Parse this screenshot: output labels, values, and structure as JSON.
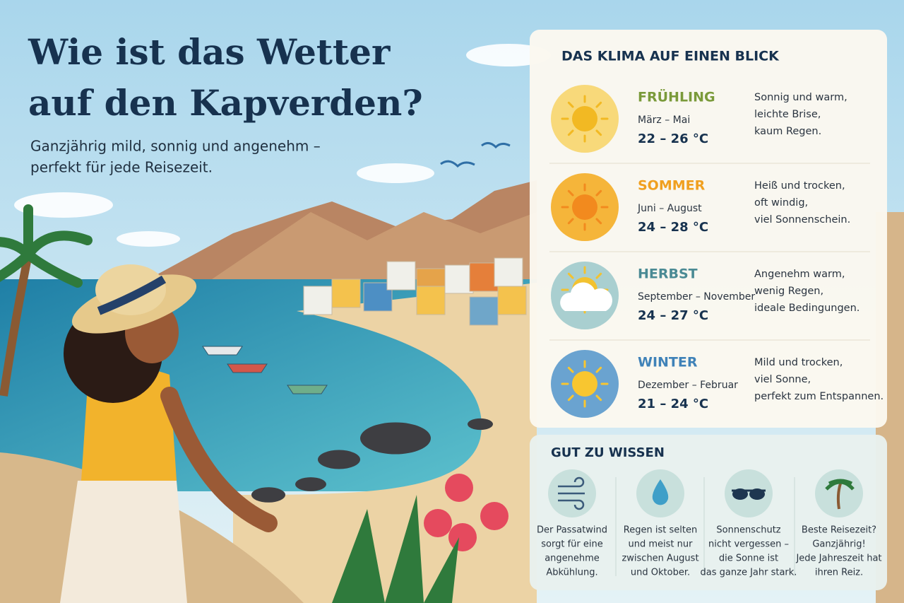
{
  "header": {
    "title_lines": [
      "Wie ist das Wetter",
      "auf den Kapverden?"
    ],
    "subtitle_lines": [
      "Ganzjährig mild, sonnig und angenehm –",
      "perfekt für jede Reisezeit."
    ]
  },
  "climate": {
    "title": "DAS KLIMA AUF EINEN BLICK",
    "seasons": [
      {
        "name": "FRÜHLING",
        "months": "März – Mai",
        "temps": "22 – 26 °C",
        "description": [
          "Sonnig und warm,",
          "leichte Brise,",
          "kaum Regen."
        ]
      },
      {
        "name": "SOMMER",
        "months": "Juni – August",
        "temps": "24 – 28 °C",
        "description": [
          "Heiß und trocken,",
          "oft windig,",
          "viel Sonnenschein."
        ]
      },
      {
        "name": "HERBST",
        "months": "September – November",
        "temps": "24 – 27 °C",
        "description": [
          "Angenehm warm,",
          "wenig Regen,",
          "ideale Bedingungen."
        ]
      },
      {
        "name": "WINTER",
        "months": "Dezember – Februar",
        "temps": "21 – 24 °C",
        "description": [
          "Mild und trocken,",
          "viel Sonne,",
          "perfekt zum Entspannen."
        ]
      }
    ]
  },
  "tips": {
    "title": "GUT ZU WISSEN",
    "items": [
      {
        "lines": [
          "Der Passatwind",
          "sorgt für eine",
          "angenehme",
          "Abkühlung."
        ]
      },
      {
        "lines": [
          "Regen ist selten",
          "und meist nur",
          "zwischen August",
          "und Oktober."
        ]
      },
      {
        "lines": [
          "Sonnenschutz",
          "nicht vergessen –",
          "die Sonne ist",
          "das ganze Jahr stark."
        ]
      },
      {
        "lines": [
          "Beste Reisezeit?",
          "Ganzjährig!",
          "Jede Jahreszeit hat",
          "ihren Reiz."
        ]
      }
    ]
  }
}
